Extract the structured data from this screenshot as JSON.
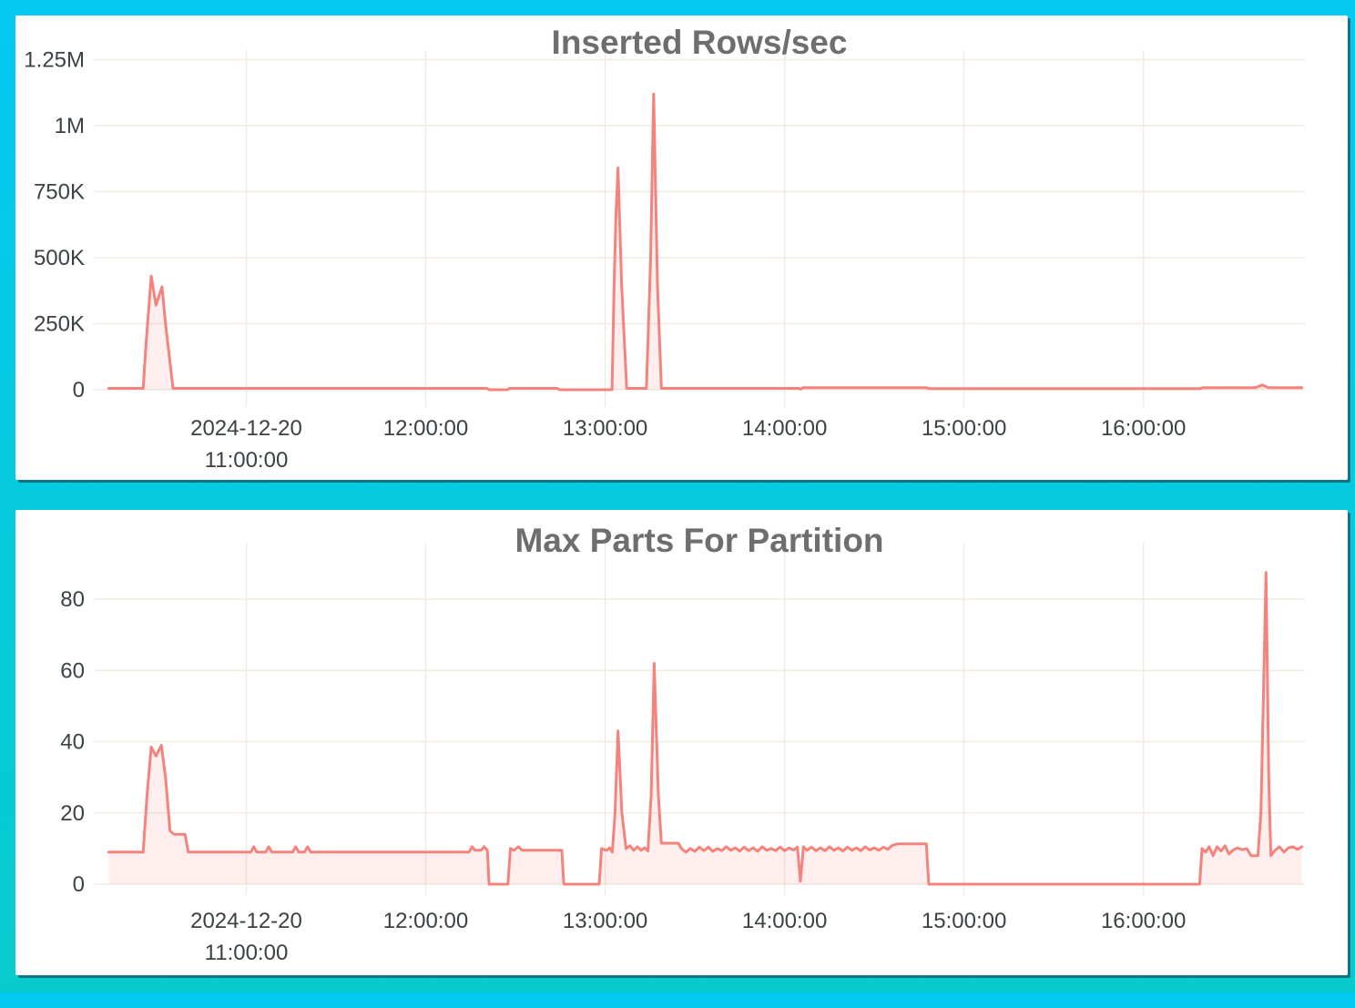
{
  "frame": {
    "background_top_color": "#04c9f1",
    "background_bottom_color": "#07cbcb",
    "panel_background": "#ffffff",
    "panel_shadow_color": "#117386"
  },
  "chart_data": [
    {
      "type": "area",
      "title": "Inserted Rows/sec",
      "xlabel": "",
      "ylabel": "",
      "legend": "none",
      "grid": true,
      "line_color": "#f4837d",
      "fill_color": "rgba(244,131,125,0.13)",
      "grid_color": "#f1ecdf",
      "label_color": "#3b4245",
      "title_color": "#6e6e6e",
      "ylim": [
        0,
        1362000
      ],
      "xlim_minutes_from_10_00": [
        9,
        414
      ],
      "y_ticks": [
        {
          "value": 0,
          "label": "0"
        },
        {
          "value": 250000,
          "label": "250K"
        },
        {
          "value": 500000,
          "label": "500K"
        },
        {
          "value": 750000,
          "label": "750K"
        },
        {
          "value": 1000000,
          "label": "1M"
        },
        {
          "value": 1250000,
          "label": "1.25M"
        }
      ],
      "x_ticks": [
        {
          "minutes": 60,
          "lines": [
            "2024-12-20",
            "11:00:00"
          ]
        },
        {
          "minutes": 120,
          "lines": [
            "12:00:00"
          ]
        },
        {
          "minutes": 180,
          "lines": [
            "13:00:00"
          ]
        },
        {
          "minutes": 240,
          "lines": [
            "14:00:00"
          ]
        },
        {
          "minutes": 300,
          "lines": [
            "15:00:00"
          ]
        },
        {
          "minutes": 360,
          "lines": [
            "16:00:00"
          ]
        }
      ],
      "points_minutes_value": [
        [
          14,
          5000
        ],
        [
          25.5,
          5000
        ],
        [
          26.5,
          180000
        ],
        [
          28.2,
          430000
        ],
        [
          29.8,
          320000
        ],
        [
          31.8,
          390000
        ],
        [
          33,
          250000
        ],
        [
          35.5,
          5000
        ],
        [
          140.5,
          5000
        ],
        [
          141.2,
          0
        ],
        [
          147.3,
          0
        ],
        [
          148,
          5000
        ],
        [
          164,
          5000
        ],
        [
          164.8,
          0
        ],
        [
          182.3,
          0
        ],
        [
          183,
          400000
        ],
        [
          183.6,
          660000
        ],
        [
          184.3,
          840000
        ],
        [
          185.5,
          400000
        ],
        [
          187.2,
          5000
        ],
        [
          193.8,
          5000
        ],
        [
          195.2,
          500000
        ],
        [
          196.2,
          1120000
        ],
        [
          197.5,
          400000
        ],
        [
          198.8,
          5000
        ],
        [
          244.8,
          5000
        ],
        [
          245.4,
          2000
        ],
        [
          246.2,
          8000
        ],
        [
          287.5,
          8000
        ],
        [
          288.2,
          4000
        ],
        [
          379,
          4000
        ],
        [
          379.8,
          8000
        ],
        [
          397.5,
          8000
        ],
        [
          399.8,
          18000
        ],
        [
          401.8,
          8000
        ],
        [
          413,
          8000
        ]
      ]
    },
    {
      "type": "area",
      "title": "Max Parts For Partition",
      "xlabel": "",
      "ylabel": "",
      "legend": "none",
      "grid": true,
      "line_color": "#f4837d",
      "fill_color": "rgba(244,131,125,0.13)",
      "grid_color": "#f1ecdf",
      "label_color": "#3b4245",
      "title_color": "#6e6e6e",
      "ylim": [
        0,
        101
      ],
      "xlim_minutes_from_10_00": [
        9,
        414
      ],
      "y_ticks": [
        {
          "value": 0,
          "label": "0"
        },
        {
          "value": 20,
          "label": "20"
        },
        {
          "value": 40,
          "label": "40"
        },
        {
          "value": 60,
          "label": "60"
        },
        {
          "value": 80,
          "label": "80"
        }
      ],
      "x_ticks": [
        {
          "minutes": 60,
          "lines": [
            "2024-12-20",
            "11:00:00"
          ]
        },
        {
          "minutes": 120,
          "lines": [
            "12:00:00"
          ]
        },
        {
          "minutes": 180,
          "lines": [
            "13:00:00"
          ]
        },
        {
          "minutes": 240,
          "lines": [
            "14:00:00"
          ]
        },
        {
          "minutes": 300,
          "lines": [
            "15:00:00"
          ]
        },
        {
          "minutes": 360,
          "lines": [
            "16:00:00"
          ]
        }
      ],
      "points_minutes_value": [
        [
          14,
          9
        ],
        [
          25.5,
          9
        ],
        [
          26.8,
          25
        ],
        [
          28.2,
          38.5
        ],
        [
          29.8,
          36
        ],
        [
          31.6,
          39
        ],
        [
          33,
          30
        ],
        [
          34.5,
          15
        ],
        [
          35.8,
          14
        ],
        [
          39.5,
          14
        ],
        [
          40.6,
          9
        ],
        [
          61.5,
          9
        ],
        [
          62.5,
          10.5
        ],
        [
          63.5,
          9
        ],
        [
          66.5,
          9
        ],
        [
          67.5,
          10.5
        ],
        [
          68.5,
          9
        ],
        [
          75.5,
          9
        ],
        [
          76.5,
          10.5
        ],
        [
          77.5,
          9
        ],
        [
          79.5,
          9
        ],
        [
          80.5,
          10.5
        ],
        [
          81.5,
          9
        ],
        [
          134.5,
          9
        ],
        [
          135.5,
          10.5
        ],
        [
          136.5,
          9.5
        ],
        [
          138.5,
          9.5
        ],
        [
          139.5,
          10.5
        ],
        [
          140.6,
          9.5
        ],
        [
          141.2,
          0
        ],
        [
          147.5,
          0
        ],
        [
          148.3,
          10
        ],
        [
          149.5,
          9.5
        ],
        [
          151,
          10.5
        ],
        [
          152.2,
          9.5
        ],
        [
          165.5,
          9.5
        ],
        [
          166.2,
          0
        ],
        [
          178,
          0
        ],
        [
          178.8,
          10
        ],
        [
          180.5,
          9.5
        ],
        [
          181.5,
          10.2
        ],
        [
          182.4,
          9
        ],
        [
          183.3,
          20
        ],
        [
          184.3,
          43
        ],
        [
          185.6,
          20
        ],
        [
          187,
          10
        ],
        [
          188.3,
          10.8
        ],
        [
          189.5,
          9.5
        ],
        [
          190.8,
          10.5
        ],
        [
          192,
          9.5
        ],
        [
          193.2,
          10.2
        ],
        [
          194.3,
          9.3
        ],
        [
          195.4,
          25
        ],
        [
          196.4,
          62
        ],
        [
          197.8,
          25
        ],
        [
          198.8,
          11.5
        ],
        [
          204.5,
          11.5
        ],
        [
          205.5,
          10
        ],
        [
          207,
          9
        ],
        [
          208.5,
          10
        ],
        [
          210,
          9.2
        ],
        [
          211.5,
          10.4
        ],
        [
          213,
          9.4
        ],
        [
          214.5,
          10.4
        ],
        [
          216,
          9.2
        ],
        [
          217.5,
          10
        ],
        [
          219,
          9.4
        ],
        [
          220.5,
          10.5
        ],
        [
          222,
          9.5
        ],
        [
          223.5,
          10.2
        ],
        [
          225,
          9.3
        ],
        [
          226.5,
          10.4
        ],
        [
          228,
          9.4
        ],
        [
          229.5,
          10.2
        ],
        [
          231,
          9.2
        ],
        [
          232.5,
          10.5
        ],
        [
          234,
          9.5
        ],
        [
          235.5,
          10
        ],
        [
          237,
          9.4
        ],
        [
          238.5,
          10.4
        ],
        [
          240,
          9.4
        ],
        [
          241.5,
          10.2
        ],
        [
          243,
          9.6
        ],
        [
          244.3,
          10.4
        ],
        [
          245.3,
          0.8
        ],
        [
          246.3,
          10.5
        ],
        [
          247.5,
          9.5
        ],
        [
          249,
          10.4
        ],
        [
          250.5,
          9.4
        ],
        [
          252,
          10.2
        ],
        [
          253.5,
          9.4
        ],
        [
          255,
          10.5
        ],
        [
          256.5,
          9.5
        ],
        [
          258,
          10.2
        ],
        [
          259.5,
          9.3
        ],
        [
          261,
          10.4
        ],
        [
          262.5,
          9.5
        ],
        [
          264,
          10.2
        ],
        [
          265.5,
          9.4
        ],
        [
          267,
          10.5
        ],
        [
          268.5,
          9.6
        ],
        [
          270,
          10.2
        ],
        [
          271.5,
          9.5
        ],
        [
          273,
          10.4
        ],
        [
          274.5,
          9.8
        ],
        [
          276,
          10.9
        ],
        [
          277.8,
          11.3
        ],
        [
          287.4,
          11.3
        ],
        [
          288.2,
          0
        ],
        [
          378.8,
          0
        ],
        [
          379.6,
          10
        ],
        [
          380.8,
          9
        ],
        [
          382,
          10.5
        ],
        [
          383.3,
          8
        ],
        [
          384.6,
          10.5
        ],
        [
          386,
          9.3
        ],
        [
          387.3,
          10.8
        ],
        [
          388.6,
          8.5
        ],
        [
          390,
          9.6
        ],
        [
          391.5,
          10.2
        ],
        [
          393,
          9.7
        ],
        [
          394.5,
          10
        ],
        [
          396,
          8
        ],
        [
          398.3,
          8
        ],
        [
          399.3,
          20
        ],
        [
          401,
          87.5
        ],
        [
          401.9,
          30
        ],
        [
          402.6,
          8
        ],
        [
          404,
          9.5
        ],
        [
          405.5,
          10.5
        ],
        [
          407,
          9
        ],
        [
          408.5,
          10.2
        ],
        [
          410,
          10.5
        ],
        [
          411.5,
          9.8
        ],
        [
          413,
          10.5
        ]
      ]
    }
  ]
}
